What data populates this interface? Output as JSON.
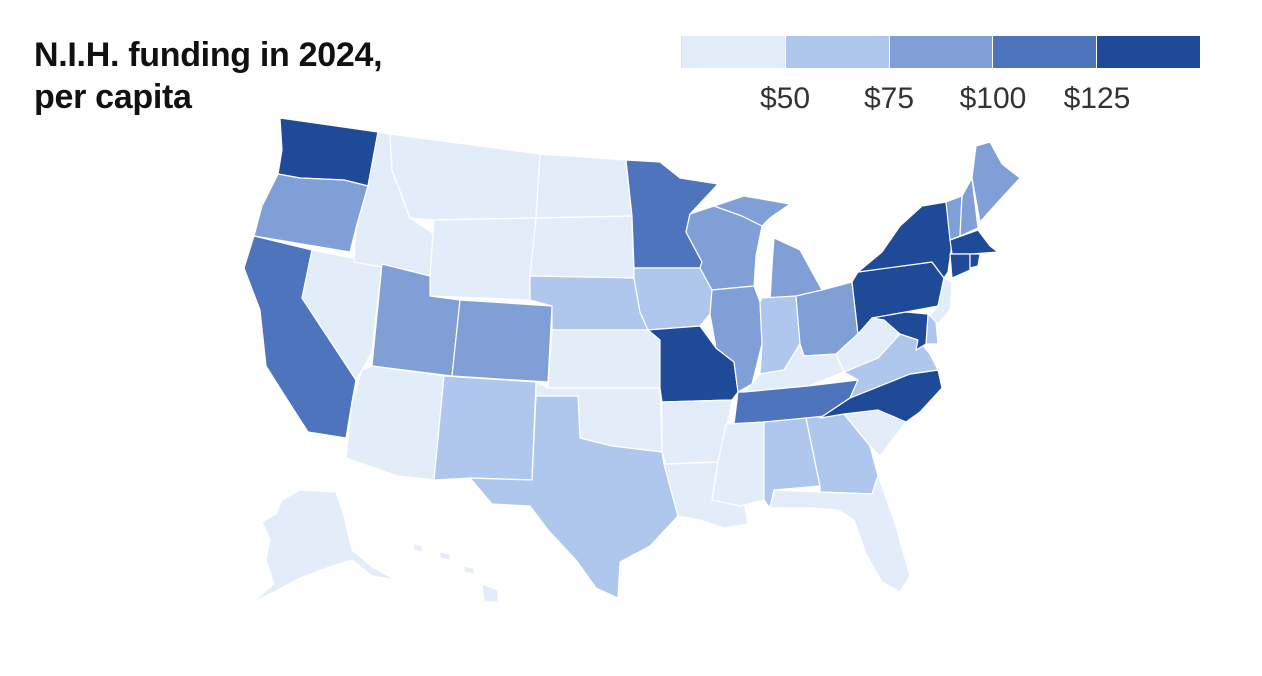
{
  "title_line1": "N.I.H. funding in 2024,",
  "title_line2": "per capita",
  "legend": {
    "ticks": [
      "$50",
      "$75",
      "$100",
      "$125"
    ],
    "colors": [
      "#e3edfa",
      "#afc7ec",
      "#7f9fd6",
      "#4d74bd",
      "#1f4a98"
    ]
  },
  "map": {
    "projection": "Albers USA",
    "region": "United States",
    "units": "N.I.H. funding per capita, 2024",
    "insets": [
      "Alaska",
      "Hawaii"
    ],
    "state_bins": {
      "WA": 5,
      "OR": 3,
      "CA": 4,
      "NV": 1,
      "ID": 1,
      "MT": 1,
      "WY": 1,
      "UT": 3,
      "CO": 3,
      "AZ": 1,
      "NM": 2,
      "TX": 2,
      "OK": 1,
      "KS": 1,
      "NE": 2,
      "SD": 1,
      "ND": 1,
      "MN": 4,
      "IA": 2,
      "MO": 5,
      "AR": 1,
      "LA": 1,
      "MS": 1,
      "AL": 2,
      "GA": 2,
      "FL": 1,
      "SC": 1,
      "NC": 5,
      "TN": 4,
      "KY": 1,
      "WV": 1,
      "VA": 2,
      "WI": 3,
      "MI": 3,
      "IL": 3,
      "IN": 2,
      "OH": 3,
      "PA": 5,
      "NY": 5,
      "VT": 3,
      "NH": 3,
      "ME": 3,
      "MA": 5,
      "RI": 5,
      "CT": 5,
      "NJ": 1,
      "DE": 2,
      "MD": 5,
      "AK": 1,
      "HI": 1
    }
  }
}
